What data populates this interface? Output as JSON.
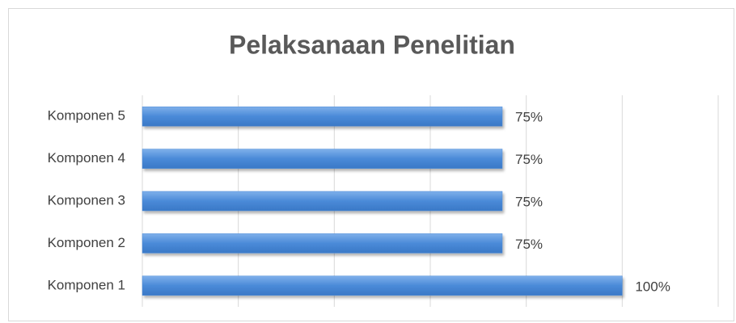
{
  "chart_data": {
    "type": "bar",
    "orientation": "horizontal",
    "title": "Pelaksanaan Penelitian",
    "categories": [
      "Komponen 1",
      "Komponen 2",
      "Komponen 3",
      "Komponen 4",
      "Komponen 5"
    ],
    "values": [
      100,
      75,
      75,
      75,
      75
    ],
    "value_labels": [
      "100%",
      "75%",
      "75%",
      "75%",
      "75%"
    ],
    "color": "#4a8ad8",
    "xlim": [
      0,
      120
    ],
    "xticks": [
      0,
      20,
      40,
      60,
      80,
      100,
      120
    ],
    "grid": true
  }
}
